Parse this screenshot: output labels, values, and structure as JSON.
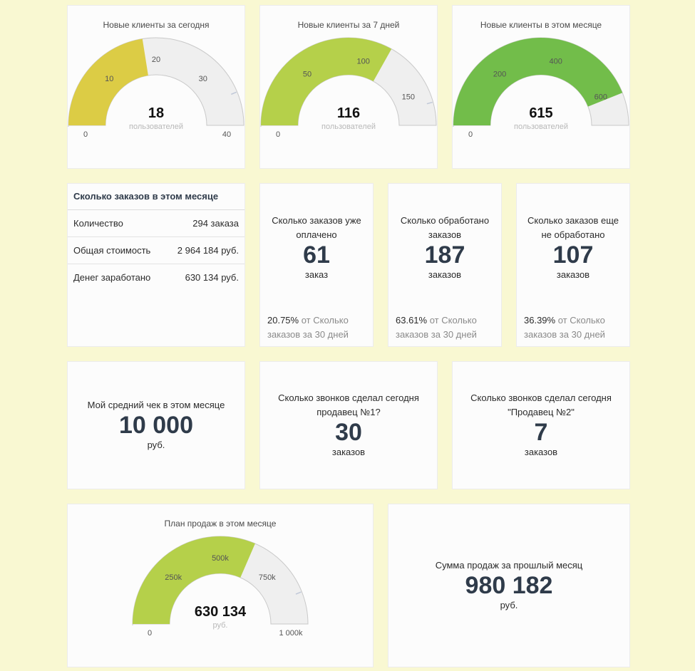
{
  "gauges": {
    "today": {
      "title": "Новые клиенты за сегодня",
      "value": 18,
      "value_label": "18",
      "unit": "пользователей",
      "min": 0,
      "max": 40,
      "plot_band_to": 35,
      "color": "#dccc45",
      "ticks": [
        {
          "v": 0,
          "t": "0"
        },
        {
          "v": 10,
          "t": "10"
        },
        {
          "v": 20,
          "t": "20"
        },
        {
          "v": 30,
          "t": "30"
        },
        {
          "v": 40,
          "t": "40"
        }
      ]
    },
    "week": {
      "title": "Новые клиенты за 7 дней",
      "value": 116,
      "value_label": "116",
      "unit": "пользователей",
      "min": 0,
      "max": 175,
      "plot_band_to": 160,
      "color": "#b5d04a",
      "ticks": [
        {
          "v": 0,
          "t": "0"
        },
        {
          "v": 50,
          "t": "50"
        },
        {
          "v": 100,
          "t": "100"
        },
        {
          "v": 150,
          "t": "150"
        }
      ]
    },
    "month": {
      "title": "Новые клиенты в этом месяце",
      "value": 615,
      "value_label": "615",
      "unit": "пользователей",
      "min": 0,
      "max": 700,
      "plot_band_to": 760,
      "color": "#72bd4a",
      "ticks": [
        {
          "v": 0,
          "t": "0"
        },
        {
          "v": 200,
          "t": "200"
        },
        {
          "v": 400,
          "t": "400"
        },
        {
          "v": 600,
          "t": "600"
        }
      ]
    },
    "plan": {
      "title": "План продаж в этом месяце",
      "value": 630134,
      "value_label": "630 134",
      "unit": "руб.",
      "min": 0,
      "max": 1000000,
      "plot_band_to": 880000,
      "color": "#b5d04a",
      "ticks": [
        {
          "v": 0,
          "t": "0"
        },
        {
          "v": 250000,
          "t": "250k"
        },
        {
          "v": 500000,
          "t": "500k"
        },
        {
          "v": 750000,
          "t": "750k"
        },
        {
          "v": 1000000,
          "t": "1 000k"
        }
      ]
    }
  },
  "orders_table": {
    "title": "Сколько заказов в этом месяце",
    "rows": [
      {
        "label": "Количество",
        "value": "294 заказа"
      },
      {
        "label": "Общая стоимость",
        "value": "2 964 184 руб."
      },
      {
        "label": "Денег заработано",
        "value": "630 134 руб."
      }
    ]
  },
  "paid": {
    "label": "Сколько заказов уже оплачено",
    "value": "61",
    "unit": "заказ",
    "pct": "20.75%",
    "pct_text": " от Сколько заказов за 30 дней"
  },
  "processed": {
    "label": "Сколько обработано заказов",
    "value": "187",
    "unit": "заказов",
    "pct": "63.61%",
    "pct_text": " от Сколько заказов за 30 дней"
  },
  "unprocessed": {
    "label": "Сколько заказов еще не обработано",
    "value": "107",
    "unit": "заказов",
    "pct": "36.39%",
    "pct_text": " от Сколько заказов за 30 дней"
  },
  "avg_check": {
    "label": "Мой средний чек в этом месяце",
    "value": "10 000",
    "unit": "руб."
  },
  "calls1": {
    "label": "Сколько звонков сделал сегодня продавец №1?",
    "value": "30",
    "unit": "заказов"
  },
  "calls2": {
    "label": "Сколько звонков сделал сегодня \"Продавец №2\"",
    "value": "7",
    "unit": "заказов"
  },
  "last_month": {
    "label": "Сумма продаж за прошлый месяц",
    "value": "980 182",
    "unit": "руб."
  }
}
